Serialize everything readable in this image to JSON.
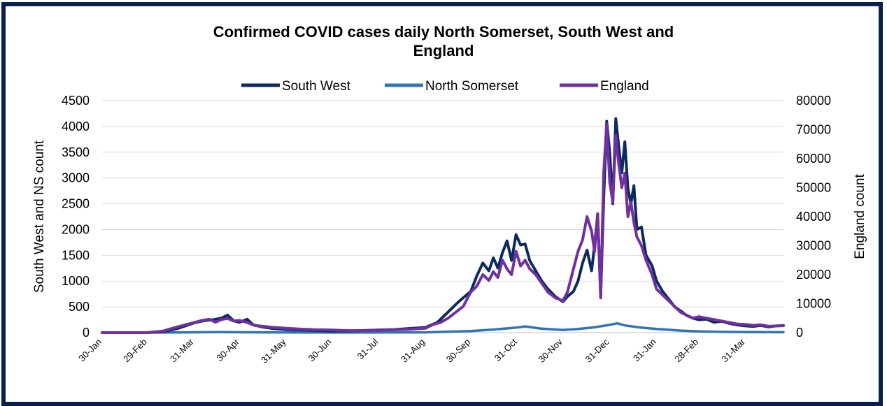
{
  "chart_data": {
    "type": "line",
    "title_line1": "Confirmed COVID cases daily North Somerset, South West and",
    "title_line2": "England",
    "y_left_label": "South West and NS count",
    "y_right_label": "England count",
    "y_left_range": [
      0,
      4500
    ],
    "y_right_range": [
      0,
      80000
    ],
    "y_left_ticks": [
      "0",
      "500",
      "1000",
      "1500",
      "2000",
      "2500",
      "3000",
      "3500",
      "4000",
      "4500"
    ],
    "y_right_ticks": [
      "0",
      "10000",
      "20000",
      "30000",
      "40000",
      "50000",
      "60000",
      "70000",
      "80000"
    ],
    "x_range": [
      "2020-01-30",
      "2021-04-25"
    ],
    "x_ticks": [
      {
        "label": "30-Jan",
        "date": "2020-01-30"
      },
      {
        "label": "29-Feb",
        "date": "2020-02-29"
      },
      {
        "label": "31-Mar",
        "date": "2020-03-31"
      },
      {
        "label": "30-Apr",
        "date": "2020-04-30"
      },
      {
        "label": "31-May",
        "date": "2020-05-31"
      },
      {
        "label": "30-Jun",
        "date": "2020-06-30"
      },
      {
        "label": "31-Jul",
        "date": "2020-07-31"
      },
      {
        "label": "31-Aug",
        "date": "2020-08-31"
      },
      {
        "label": "30-Sep",
        "date": "2020-09-30"
      },
      {
        "label": "31-Oct",
        "date": "2020-10-31"
      },
      {
        "label": "30-Nov",
        "date": "2020-11-30"
      },
      {
        "label": "31-Dec",
        "date": "2020-12-31"
      },
      {
        "label": "31-Jan",
        "date": "2021-01-31"
      },
      {
        "label": "28-Feb",
        "date": "2021-02-28"
      },
      {
        "label": "31-Mar",
        "date": "2021-03-31"
      }
    ],
    "grid": true,
    "legend_position": "top-center",
    "series": [
      {
        "name": "South West",
        "axis": "left",
        "color": "#0d2a5e",
        "points": [
          [
            "2020-01-30",
            0
          ],
          [
            "2020-02-29",
            2
          ],
          [
            "2020-03-10",
            15
          ],
          [
            "2020-03-20",
            80
          ],
          [
            "2020-03-31",
            190
          ],
          [
            "2020-04-06",
            230
          ],
          [
            "2020-04-12",
            250
          ],
          [
            "2020-04-18",
            280
          ],
          [
            "2020-04-22",
            340
          ],
          [
            "2020-04-26",
            230
          ],
          [
            "2020-04-30",
            200
          ],
          [
            "2020-05-05",
            260
          ],
          [
            "2020-05-09",
            150
          ],
          [
            "2020-05-15",
            110
          ],
          [
            "2020-05-22",
            80
          ],
          [
            "2020-05-31",
            60
          ],
          [
            "2020-06-10",
            50
          ],
          [
            "2020-06-20",
            40
          ],
          [
            "2020-06-30",
            30
          ],
          [
            "2020-07-10",
            30
          ],
          [
            "2020-07-20",
            40
          ],
          [
            "2020-07-31",
            50
          ],
          [
            "2020-08-10",
            60
          ],
          [
            "2020-08-20",
            80
          ],
          [
            "2020-08-31",
            100
          ],
          [
            "2020-09-08",
            200
          ],
          [
            "2020-09-15",
            400
          ],
          [
            "2020-09-22",
            600
          ],
          [
            "2020-09-30",
            800
          ],
          [
            "2020-10-04",
            1100
          ],
          [
            "2020-10-08",
            1350
          ],
          [
            "2020-10-12",
            1200
          ],
          [
            "2020-10-15",
            1450
          ],
          [
            "2020-10-18",
            1250
          ],
          [
            "2020-10-21",
            1550
          ],
          [
            "2020-10-24",
            1780
          ],
          [
            "2020-10-27",
            1400
          ],
          [
            "2020-10-30",
            1900
          ],
          [
            "2020-11-02",
            1700
          ],
          [
            "2020-11-05",
            1720
          ],
          [
            "2020-11-08",
            1400
          ],
          [
            "2020-11-12",
            1200
          ],
          [
            "2020-11-16",
            1000
          ],
          [
            "2020-11-20",
            850
          ],
          [
            "2020-11-25",
            700
          ],
          [
            "2020-11-30",
            600
          ],
          [
            "2020-12-03",
            700
          ],
          [
            "2020-12-07",
            800
          ],
          [
            "2020-12-10",
            1000
          ],
          [
            "2020-12-13",
            1350
          ],
          [
            "2020-12-16",
            1600
          ],
          [
            "2020-12-19",
            1200
          ],
          [
            "2020-12-21",
            1700
          ],
          [
            "2020-12-23",
            2300
          ],
          [
            "2020-12-25",
            700
          ],
          [
            "2020-12-27",
            2600
          ],
          [
            "2020-12-29",
            4100
          ],
          [
            "2020-12-31",
            3500
          ],
          [
            "2021-01-02",
            2500
          ],
          [
            "2021-01-04",
            4150
          ],
          [
            "2021-01-06",
            3600
          ],
          [
            "2021-01-08",
            3100
          ],
          [
            "2021-01-10",
            3700
          ],
          [
            "2021-01-12",
            2800
          ],
          [
            "2021-01-14",
            2500
          ],
          [
            "2021-01-16",
            2850
          ],
          [
            "2021-01-18",
            2000
          ],
          [
            "2021-01-21",
            2050
          ],
          [
            "2021-01-24",
            1500
          ],
          [
            "2021-01-28",
            1300
          ],
          [
            "2021-01-31",
            1000
          ],
          [
            "2021-02-04",
            800
          ],
          [
            "2021-02-08",
            650
          ],
          [
            "2021-02-12",
            500
          ],
          [
            "2021-02-16",
            420
          ],
          [
            "2021-02-20",
            330
          ],
          [
            "2021-02-24",
            280
          ],
          [
            "2021-02-28",
            250
          ],
          [
            "2021-03-05",
            260
          ],
          [
            "2021-03-10",
            200
          ],
          [
            "2021-03-15",
            220
          ],
          [
            "2021-03-20",
            180
          ],
          [
            "2021-03-25",
            150
          ],
          [
            "2021-03-31",
            130
          ],
          [
            "2021-04-05",
            120
          ],
          [
            "2021-04-10",
            140
          ],
          [
            "2021-04-15",
            110
          ],
          [
            "2021-04-20",
            130
          ],
          [
            "2021-04-25",
            140
          ]
        ]
      },
      {
        "name": "North Somerset",
        "axis": "left",
        "color": "#2e75b6",
        "points": [
          [
            "2020-01-30",
            0
          ],
          [
            "2020-03-20",
            3
          ],
          [
            "2020-04-15",
            10
          ],
          [
            "2020-05-15",
            6
          ],
          [
            "2020-06-30",
            2
          ],
          [
            "2020-07-31",
            3
          ],
          [
            "2020-08-31",
            5
          ],
          [
            "2020-09-30",
            30
          ],
          [
            "2020-10-15",
            60
          ],
          [
            "2020-10-31",
            100
          ],
          [
            "2020-11-05",
            120
          ],
          [
            "2020-11-15",
            80
          ],
          [
            "2020-11-30",
            50
          ],
          [
            "2020-12-10",
            70
          ],
          [
            "2020-12-20",
            100
          ],
          [
            "2020-12-31",
            150
          ],
          [
            "2021-01-05",
            180
          ],
          [
            "2021-01-10",
            140
          ],
          [
            "2021-01-20",
            100
          ],
          [
            "2021-01-31",
            70
          ],
          [
            "2021-02-15",
            40
          ],
          [
            "2021-02-28",
            25
          ],
          [
            "2021-03-15",
            15
          ],
          [
            "2021-03-31",
            10
          ],
          [
            "2021-04-25",
            8
          ]
        ]
      },
      {
        "name": "England",
        "axis": "right",
        "color": "#7030a0",
        "points": [
          [
            "2020-01-30",
            0
          ],
          [
            "2020-02-29",
            30
          ],
          [
            "2020-03-10",
            500
          ],
          [
            "2020-03-20",
            2000
          ],
          [
            "2020-03-31",
            3500
          ],
          [
            "2020-04-05",
            4200
          ],
          [
            "2020-04-10",
            4600
          ],
          [
            "2020-04-14",
            3600
          ],
          [
            "2020-04-18",
            4500
          ],
          [
            "2020-04-22",
            4900
          ],
          [
            "2020-04-26",
            4000
          ],
          [
            "2020-04-30",
            4200
          ],
          [
            "2020-05-05",
            3500
          ],
          [
            "2020-05-10",
            2500
          ],
          [
            "2020-05-15",
            2200
          ],
          [
            "2020-05-22",
            1800
          ],
          [
            "2020-05-31",
            1500
          ],
          [
            "2020-06-10",
            1200
          ],
          [
            "2020-06-20",
            1000
          ],
          [
            "2020-06-30",
            900
          ],
          [
            "2020-07-10",
            700
          ],
          [
            "2020-07-20",
            700
          ],
          [
            "2020-07-31",
            900
          ],
          [
            "2020-08-10",
            1000
          ],
          [
            "2020-08-20",
            1100
          ],
          [
            "2020-08-31",
            1500
          ],
          [
            "2020-09-05",
            2800
          ],
          [
            "2020-09-10",
            3500
          ],
          [
            "2020-09-15",
            5000
          ],
          [
            "2020-09-20",
            7000
          ],
          [
            "2020-09-25",
            9000
          ],
          [
            "2020-09-30",
            14000
          ],
          [
            "2020-10-04",
            16000
          ],
          [
            "2020-10-08",
            20000
          ],
          [
            "2020-10-12",
            18000
          ],
          [
            "2020-10-15",
            21000
          ],
          [
            "2020-10-18",
            19000
          ],
          [
            "2020-10-21",
            25000
          ],
          [
            "2020-10-24",
            22000
          ],
          [
            "2020-10-27",
            20000
          ],
          [
            "2020-10-30",
            28000
          ],
          [
            "2020-11-02",
            23000
          ],
          [
            "2020-11-05",
            25000
          ],
          [
            "2020-11-08",
            22000
          ],
          [
            "2020-11-12",
            20000
          ],
          [
            "2020-11-16",
            17000
          ],
          [
            "2020-11-20",
            14000
          ],
          [
            "2020-11-25",
            12000
          ],
          [
            "2020-11-30",
            11000
          ],
          [
            "2020-12-03",
            14000
          ],
          [
            "2020-12-07",
            22000
          ],
          [
            "2020-12-10",
            28000
          ],
          [
            "2020-12-13",
            32000
          ],
          [
            "2020-12-16",
            40000
          ],
          [
            "2020-12-19",
            35000
          ],
          [
            "2020-12-21",
            28000
          ],
          [
            "2020-12-23",
            41000
          ],
          [
            "2020-12-25",
            12000
          ],
          [
            "2020-12-27",
            55000
          ],
          [
            "2020-12-29",
            72000
          ],
          [
            "2020-12-31",
            52000
          ],
          [
            "2021-01-02",
            45000
          ],
          [
            "2021-01-04",
            68000
          ],
          [
            "2021-01-06",
            58000
          ],
          [
            "2021-01-08",
            50000
          ],
          [
            "2021-01-10",
            55000
          ],
          [
            "2021-01-12",
            40000
          ],
          [
            "2021-01-14",
            45000
          ],
          [
            "2021-01-16",
            38000
          ],
          [
            "2021-01-18",
            33000
          ],
          [
            "2021-01-21",
            30000
          ],
          [
            "2021-01-24",
            25000
          ],
          [
            "2021-01-28",
            20000
          ],
          [
            "2021-01-31",
            15000
          ],
          [
            "2021-02-04",
            13000
          ],
          [
            "2021-02-08",
            11000
          ],
          [
            "2021-02-12",
            9000
          ],
          [
            "2021-02-16",
            7000
          ],
          [
            "2021-02-20",
            6000
          ],
          [
            "2021-02-24",
            5000
          ],
          [
            "2021-02-28",
            5500
          ],
          [
            "2021-03-05",
            5000
          ],
          [
            "2021-03-10",
            4500
          ],
          [
            "2021-03-15",
            4000
          ],
          [
            "2021-03-20",
            3500
          ],
          [
            "2021-03-25",
            3000
          ],
          [
            "2021-03-31",
            2800
          ],
          [
            "2021-04-05",
            2500
          ],
          [
            "2021-04-10",
            2700
          ],
          [
            "2021-04-15",
            2200
          ],
          [
            "2021-04-20",
            2300
          ],
          [
            "2021-04-25",
            2400
          ]
        ]
      }
    ]
  }
}
